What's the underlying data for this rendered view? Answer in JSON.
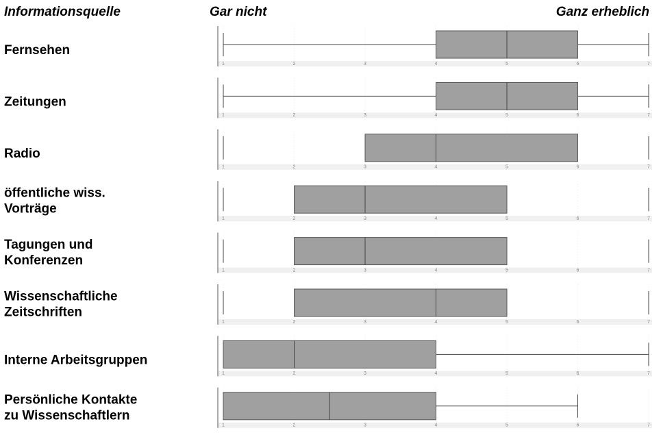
{
  "chart_data": {
    "type": "boxplot",
    "column_header": "Informationsquelle",
    "scale_low_label": "Gar nicht",
    "scale_high_label": "Ganz erheblich",
    "categories": [
      [
        "Fernsehen"
      ],
      [
        "Zeitungen"
      ],
      [
        "Radio"
      ],
      [
        "öffentliche wiss.",
        " Vorträge"
      ],
      [
        "Tagungen und",
        " Konferenzen"
      ],
      [
        "Wissenschaftliche",
        "Zeitschriften"
      ],
      [
        "Interne Arbeitsgruppen"
      ],
      [
        "Persönliche   Kontakte",
        "zu Wissenschaftlern"
      ]
    ],
    "whisker_low": [
      1,
      1,
      3,
      2,
      2,
      2,
      1,
      1
    ],
    "q1": [
      4,
      4,
      3,
      2,
      2,
      2,
      1,
      1
    ],
    "median": [
      5,
      5,
      4,
      3,
      3,
      4,
      2,
      2.5
    ],
    "q3": [
      6,
      6,
      6,
      5,
      5,
      5,
      4,
      4
    ],
    "whisker_high": [
      7,
      7,
      6,
      5,
      5,
      5,
      7,
      6
    ],
    "outliers": [
      [],
      [],
      [
        1,
        7
      ],
      [
        1,
        7
      ],
      [
        1,
        7
      ],
      [
        1,
        7
      ],
      [],
      []
    ],
    "box_color": "#a0a0a0",
    "xlim": [
      1,
      7
    ],
    "xticks": [
      1,
      2,
      3,
      4,
      5,
      6,
      7
    ]
  }
}
